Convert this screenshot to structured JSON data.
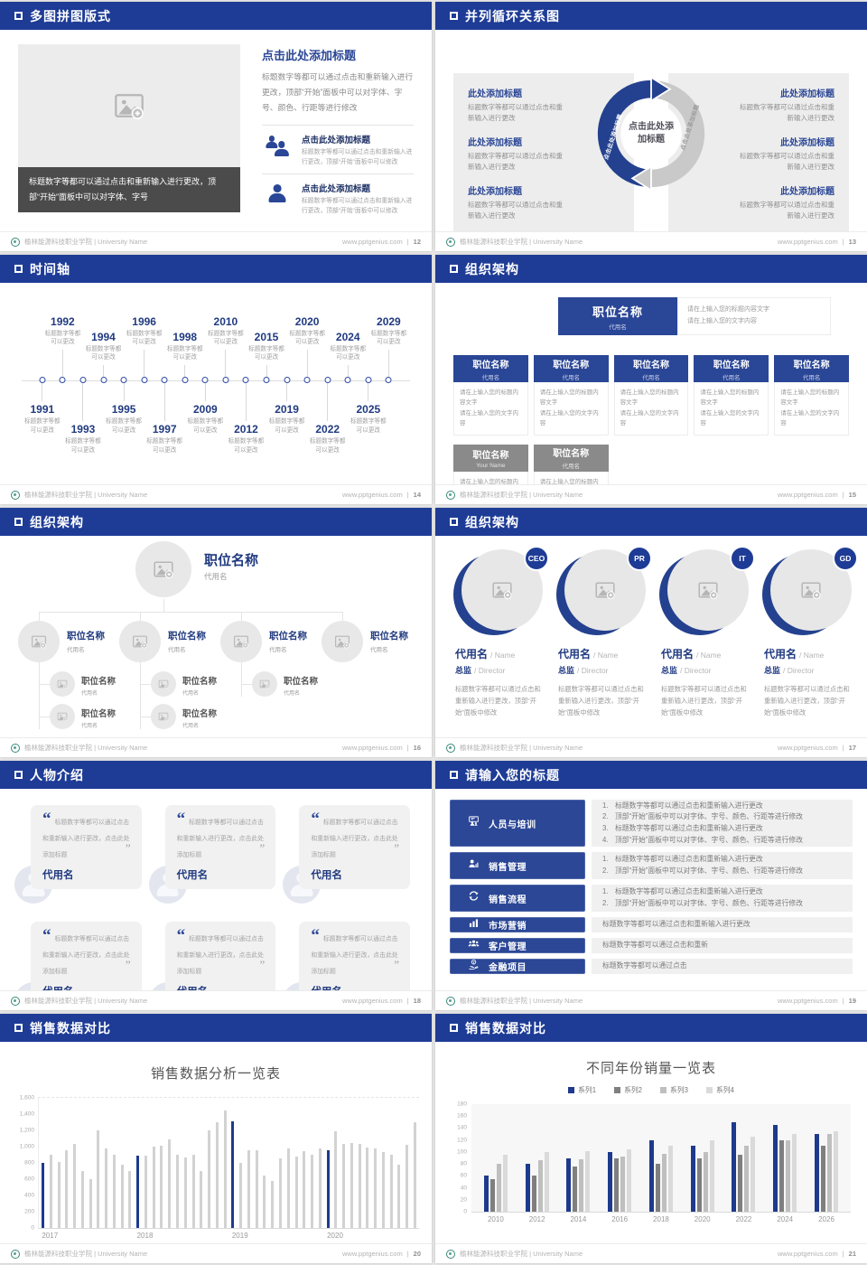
{
  "footer": {
    "university": "榆林能源科技职业学院 | University Name",
    "site": "www.pptgenius.com",
    "separator": "|"
  },
  "colors": {
    "header_bar": "#1e3c96",
    "accent_blue": "#2a4696",
    "deep_navy": "#203a80",
    "panel_gray": "#f0f0f0",
    "dark_caption": "#4b4b4b",
    "org_gray": "#8a8a8a",
    "bar_gray": "#d2d2d2",
    "bar_blue": "#1e3a8c"
  },
  "slides": {
    "s1": {
      "title": "多图拼图版式",
      "page": "12",
      "image_icon": "image-placeholder-icon",
      "caption": "标题数字等都可以通过点击和重新输入进行更改，顶部“开始”面板中可以对字体、字号",
      "heading": "点击此处添加标题",
      "paragraph": "标题数字等都可以通过点击和重新输入进行更改，顶部“开始”面板中可以对字体、字号、颜色、行距等进行修改",
      "features": [
        {
          "icon": "users-icon",
          "title": "点击此处添加标题",
          "text": "标题数字等都可以通过点击和重新输入进行更改，顶部“开始”面板中可以修改"
        },
        {
          "icon": "user-icon",
          "title": "点击此处添加标题",
          "text": "标题数字等都可以通过点击和重新输入进行更改，顶部“开始”面板中可以修改"
        }
      ]
    },
    "s2": {
      "title": "并列循环关系图",
      "page": "13",
      "center_label": "点击此处添加标题",
      "arrow_label_left": "点击此处添加标题",
      "arrow_label_right": "点击此处添加标题",
      "left_items": [
        {
          "title": "此处添加标题",
          "text": "标题数字等都可以通过点击和重\n新输入进行更改"
        },
        {
          "title": "此处添加标题",
          "text": "标题数字等都可以通过点击和重\n新输入进行更改"
        },
        {
          "title": "此处添加标题",
          "text": "标题数字等都可以通过点击和重\n新输入进行更改"
        }
      ],
      "right_items": [
        {
          "title": "此处添加标题",
          "text": "标题数字等都可以通过点击和重\n新输入进行更改"
        },
        {
          "title": "此处添加标题",
          "text": "标题数字等都可以通过点击和重\n新输入进行更改"
        },
        {
          "title": "此处添加标题",
          "text": "标题数字等都可以通过点击和重\n新输入进行更改"
        }
      ]
    },
    "s3": {
      "title": "时间轴",
      "page": "14",
      "items": [
        {
          "year": "1991",
          "side": "down",
          "far": false,
          "text": "标题数字等都\n可以更改"
        },
        {
          "year": "1992",
          "side": "up",
          "far": true,
          "text": "标题数字等都\n可以更改"
        },
        {
          "year": "1993",
          "side": "down",
          "far": true,
          "text": "标题数字等都\n可以更改"
        },
        {
          "year": "1994",
          "side": "up",
          "far": false,
          "text": "标题数字等都\n可以更改"
        },
        {
          "year": "1995",
          "side": "down",
          "far": false,
          "text": "标题数字等都\n可以更改"
        },
        {
          "year": "1996",
          "side": "up",
          "far": true,
          "text": "标题数字等都\n可以更改"
        },
        {
          "year": "1997",
          "side": "down",
          "far": true,
          "text": "标题数字等都\n可以更改"
        },
        {
          "year": "1998",
          "side": "up",
          "far": false,
          "text": "标题数字等都\n可以更改"
        },
        {
          "year": "2009",
          "side": "down",
          "far": false,
          "text": "标题数字等都\n可以更改"
        },
        {
          "year": "2010",
          "side": "up",
          "far": true,
          "text": "标题数字等都\n可以更改"
        },
        {
          "year": "2012",
          "side": "down",
          "far": true,
          "text": "标题数字等都\n可以更改"
        },
        {
          "year": "2015",
          "side": "up",
          "far": false,
          "text": "标题数字等都\n可以更改"
        },
        {
          "year": "2019",
          "side": "down",
          "far": false,
          "text": "标题数字等都\n可以更改"
        },
        {
          "year": "2020",
          "side": "up",
          "far": true,
          "text": "标题数字等都\n可以更改"
        },
        {
          "year": "2022",
          "side": "down",
          "far": true,
          "text": "标题数字等都\n可以更改"
        },
        {
          "year": "2024",
          "side": "up",
          "far": false,
          "text": "标题数字等都\n可以更改"
        },
        {
          "year": "2025",
          "side": "down",
          "far": false,
          "text": "标题数字等都\n可以更改"
        },
        {
          "year": "2029",
          "side": "up",
          "far": true,
          "text": "标题数字等都\n可以更改"
        }
      ]
    },
    "s4": {
      "title": "组织架构",
      "page": "15",
      "root": {
        "title": "职位名称",
        "sub": "代用名",
        "note": "请在上输入您的标题内容文字\n请在上输入您的文字内容"
      },
      "children": [
        {
          "title": "职位名称",
          "sub": "代用名",
          "note": "请在上输入您的标题内容文字\n请在上输入您的文字内容"
        },
        {
          "title": "职位名称",
          "sub": "代用名",
          "note": "请在上输入您的标题内容文字\n请在上输入您的文字内容"
        },
        {
          "title": "职位名称",
          "sub": "代用名",
          "note": "请在上输入您的标题内容文字\n请在上输入您的文字内容"
        },
        {
          "title": "职位名称",
          "sub": "代用名",
          "note": "请在上输入您的标题内容文字\n请在上输入您的文字内容"
        },
        {
          "title": "职位名称",
          "sub": "代用名",
          "note": "请在上输入您的标题内容文字\n请在上输入您的文字内容"
        }
      ],
      "children2": [
        {
          "title": "职位名称",
          "sub": "Your Name",
          "note": "请在上输入您的标题内容文字\n请在上输入您的文字内容"
        },
        {
          "title": "职位名称",
          "sub": "代用名",
          "note": "请在上输入您的标题内容文字\n请在上输入您的文字内容"
        }
      ]
    },
    "s5": {
      "title": "组织架构",
      "page": "16",
      "root": {
        "title": "职位名称",
        "sub": "代用名"
      },
      "children": [
        {
          "title": "职位名称",
          "sub": "代用名",
          "subs": [
            {
              "title": "职位名称",
              "sub": "代用名"
            },
            {
              "title": "职位名称",
              "sub": "代用名"
            }
          ]
        },
        {
          "title": "职位名称",
          "sub": "代用名",
          "subs": [
            {
              "title": "职位名称",
              "sub": "代用名"
            },
            {
              "title": "职位名称",
              "sub": "代用名"
            }
          ]
        },
        {
          "title": "职位名称",
          "sub": "代用名",
          "subs": [
            {
              "title": "职位名称",
              "sub": "代用名"
            }
          ]
        },
        {
          "title": "职位名称",
          "sub": "代用名",
          "subs": []
        }
      ]
    },
    "s6": {
      "title": "组织架构",
      "page": "17",
      "profiles": [
        {
          "badge": "CEO",
          "name": "代用名",
          "name_en": "/ Name",
          "role": "总监",
          "role_en": "/ Director",
          "text": "标题数字等都可以通过点击和重新输入进行更改，顶部“开始”面板中修改"
        },
        {
          "badge": "PR",
          "name": "代用名",
          "name_en": "/ Name",
          "role": "总监",
          "role_en": "/ Director",
          "text": "标题数字等都可以通过点击和重新输入进行更改，顶部“开始”面板中修改"
        },
        {
          "badge": "IT",
          "name": "代用名",
          "name_en": "/ Name",
          "role": "总监",
          "role_en": "/ Director",
          "text": "标题数字等都可以通过点击和重新输入进行更改，顶部“开始”面板中修改"
        },
        {
          "badge": "GD",
          "name": "代用名",
          "name_en": "/ Name",
          "role": "总监",
          "role_en": "/ Director",
          "text": "标题数字等都可以通过点击和重新输入进行更改，顶部“开始”面板中修改"
        }
      ]
    },
    "s7": {
      "title": "人物介绍",
      "page": "18",
      "cards": [
        {
          "text": "标题数字等都可以通过点击和重新输入进行更改，点击此处添加标题",
          "name": "代用名"
        },
        {
          "text": "标题数字等都可以通过点击和重新输入进行更改，点击此处添加标题",
          "name": "代用名"
        },
        {
          "text": "标题数字等都可以通过点击和重新输入进行更改，点击此处添加标题",
          "name": "代用名"
        },
        {
          "text": "标题数字等都可以通过点击和重新输入进行更改，点击此处添加标题",
          "name": "代用名"
        },
        {
          "text": "标题数字等都可以通过点击和重新输入进行更改，点击此处添加标题",
          "name": "代用名"
        },
        {
          "text": "标题数字等都可以通过点击和重新输入进行更改，点击此处添加标题",
          "name": "代用名"
        }
      ]
    },
    "s8": {
      "title": "请输入您的标题",
      "page": "19",
      "rows": [
        {
          "icon": "training-icon",
          "label": "人员与培训",
          "numbered": true,
          "height": 52,
          "items": [
            "标题数字等都可以通过点击和重新输入进行更改",
            "顶部“开始”面板中可以对字体、字号、颜色、行距等进行修改",
            "标题数字等都可以通过点击和重新输入进行更改",
            "顶部“开始”面板中可以对字体、字号、颜色、行距等进行修改"
          ]
        },
        {
          "icon": "sales-icon",
          "label": "销售管理",
          "numbered": true,
          "height": 30,
          "items": [
            "标题数字等都可以通过点击和重新输入进行更改",
            "顶部“开始”面板中可以对字体、字号、颜色、行距等进行修改"
          ]
        },
        {
          "icon": "process-icon",
          "label": "销售流程",
          "numbered": true,
          "height": 30,
          "items": [
            "标题数字等都可以通过点击和重新输入进行更改",
            "顶部“开始”面板中可以对字体、字号、颜色、行距等进行修改"
          ]
        },
        {
          "icon": "marketing-icon",
          "label": "市场营销",
          "numbered": false,
          "height": 17,
          "items": [
            "标题数字等都可以通过点击和重新输入进行更改"
          ]
        },
        {
          "icon": "customers-icon",
          "label": "客户管理",
          "numbered": false,
          "height": 17,
          "items": [
            "标题数字等都可以通过点击和重新"
          ]
        },
        {
          "icon": "finance-icon",
          "label": "金融项目",
          "numbered": false,
          "height": 17,
          "items": [
            "标题数字等都可以通过点击"
          ]
        }
      ]
    },
    "s9": {
      "title": "销售数据对比",
      "page": "20"
    },
    "s10": {
      "title": "销售数据对比",
      "page": "21"
    }
  },
  "chart_data": [
    {
      "type": "bar",
      "title": "销售数据分析一览表",
      "x_groups": [
        "2017",
        "2018",
        "2019",
        "2020"
      ],
      "y_ticks": [
        "1,600",
        "1,400",
        "1,200",
        "1,000",
        "800",
        "600",
        "400",
        "200",
        "0"
      ],
      "ylim": [
        0,
        1600
      ],
      "values": [
        800,
        900,
        810,
        950,
        1030,
        700,
        600,
        1200,
        980,
        900,
        780,
        700,
        890,
        890,
        1000,
        1010,
        1090,
        900,
        870,
        900,
        700,
        1200,
        1305,
        1450,
        1310,
        800,
        950,
        960,
        650,
        580,
        860,
        975,
        880,
        940,
        900,
        975,
        950,
        1185,
        1030,
        1040,
        1030,
        990,
        980,
        930,
        900,
        780,
        1020,
        1300
      ],
      "highlight_indices": [
        0,
        12,
        24,
        36
      ],
      "bar_color": "#d2d2d2",
      "highlight_color": "#1e3a8c",
      "grid": "top-dashed",
      "legend_position": "none"
    },
    {
      "type": "bar",
      "title": "不同年份销量一览表",
      "categories": [
        "2010",
        "2012",
        "2014",
        "2016",
        "2018",
        "2020",
        "2022",
        "2024",
        "2026"
      ],
      "y_ticks": [
        "180",
        "160",
        "140",
        "120",
        "100",
        "80",
        "60",
        "40",
        "20",
        "0"
      ],
      "ylim": [
        0,
        180
      ],
      "series": [
        {
          "name": "系列1",
          "color": "#1e3a8c",
          "values": [
            60,
            80,
            90,
            100,
            120,
            110,
            150,
            145,
            130
          ]
        },
        {
          "name": "系列2",
          "color": "#7f7f7f",
          "values": [
            55,
            60,
            75,
            90,
            80,
            90,
            95,
            120,
            110
          ]
        },
        {
          "name": "系列3",
          "color": "#bfbfbf",
          "values": [
            80,
            86,
            88,
            92,
            97,
            100,
            110,
            120,
            130
          ]
        },
        {
          "name": "系列4",
          "color": "#dadada",
          "values": [
            95,
            100,
            102,
            105,
            110,
            120,
            126,
            130,
            135
          ]
        }
      ],
      "legend_position": "top",
      "grid": "off"
    }
  ]
}
